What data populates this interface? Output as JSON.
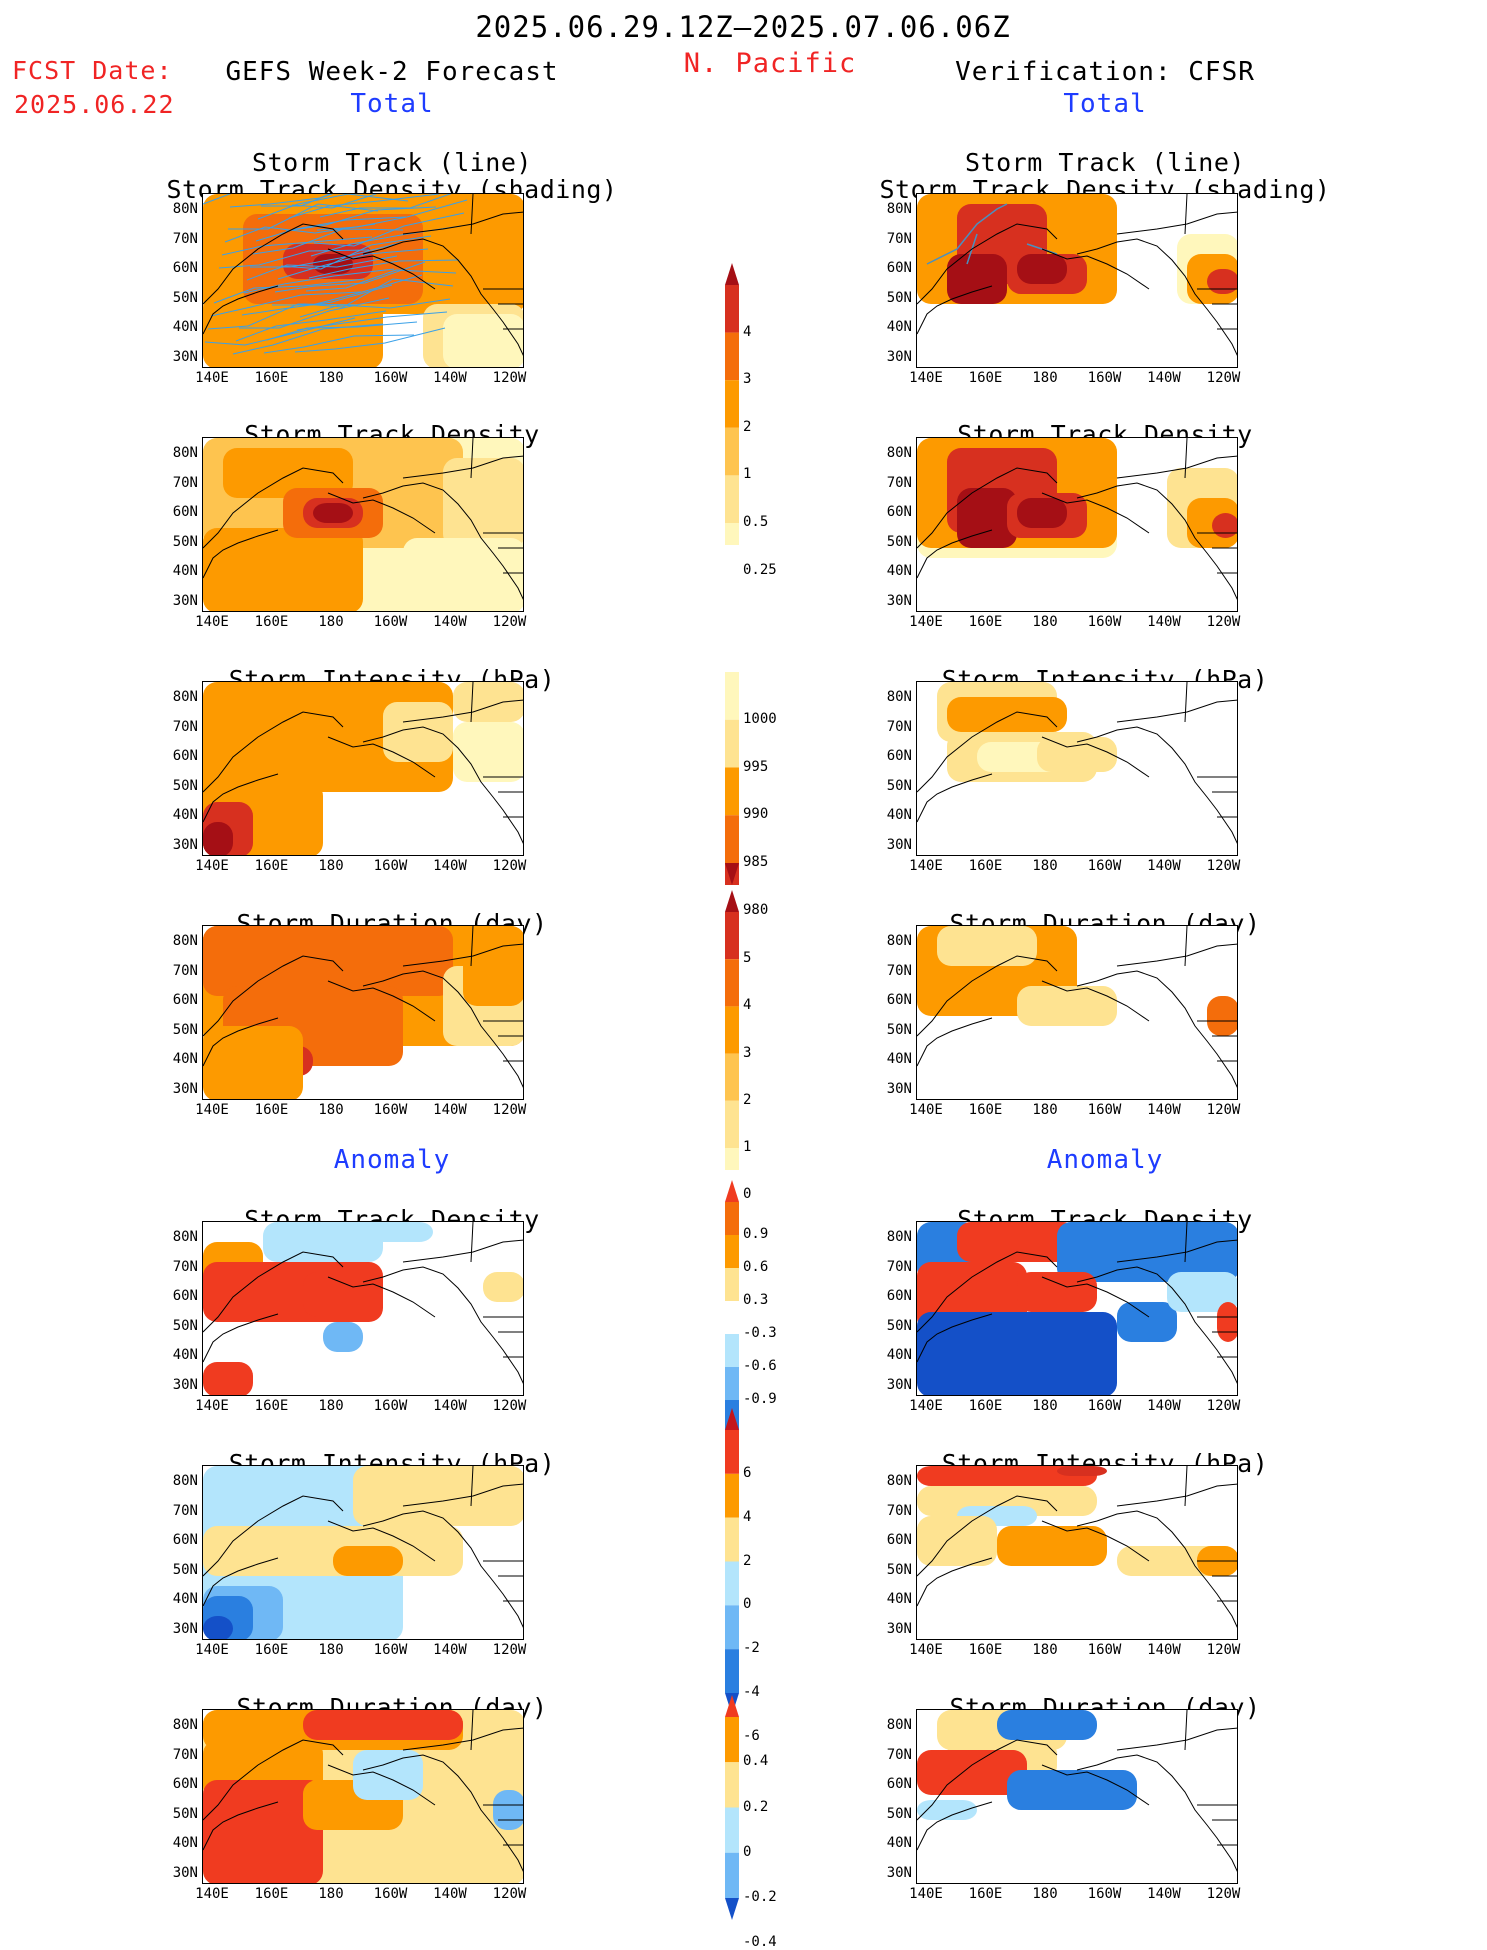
{
  "header": {
    "period": "2025.06.29.12Z–2025.07.06.06Z",
    "region": "N. Pacific",
    "fcst_label": "FCST Date:",
    "fcst_date": "2025.06.22",
    "left_title": "GEFS Week-2 Forecast",
    "right_title": "Verification: CFSR",
    "total_left": "Total",
    "total_right": "Total",
    "anomaly_left": "Anomaly",
    "anomaly_right": "Anomaly"
  },
  "panel_titles": {
    "p1_line1": "Storm Track (line)",
    "p1_line2": "Storm Track Density (shading)",
    "p2": "Storm Track Density",
    "p3": "Storm Intensity (hPa)",
    "p4": "Storm Duration (day)",
    "p5": "Storm Track Density",
    "p6": "Storm Intensity (hPa)",
    "p7": "Storm Duration (day)"
  },
  "axes": {
    "lat_labels": [
      "80N",
      "70N",
      "60N",
      "50N",
      "40N",
      "30N"
    ],
    "lon_labels": [
      "140E",
      "160E",
      "180",
      "160W",
      "140W",
      "120W"
    ]
  },
  "colorbars": {
    "density": {
      "labels": [
        "4",
        "3",
        "2",
        "1",
        "0.5",
        "0.25"
      ],
      "colors": [
        "#a50f15",
        "#d7301f",
        "#f46d0b",
        "#fd9a00",
        "#fec44f",
        "#fee391",
        "#fff7bc"
      ]
    },
    "intensity": {
      "labels": [
        "1000",
        "995",
        "990",
        "985",
        "980"
      ],
      "colors": [
        "#fff7bc",
        "#fee391",
        "#fd9a00",
        "#f46d0b",
        "#d7301f",
        "#a50f15"
      ]
    },
    "duration": {
      "labels": [
        "5",
        "4",
        "3",
        "2",
        "1",
        "0"
      ],
      "colors": [
        "#a50f15",
        "#d7301f",
        "#f46d0b",
        "#fd9a00",
        "#fec44f",
        "#fee391",
        "#fff7bc"
      ]
    },
    "anom_density": {
      "labels": [
        "0.9",
        "0.6",
        "0.3",
        "-0.3",
        "-0.6",
        "-0.9"
      ],
      "colors": [
        "#f03b20",
        "#f46d0b",
        "#fd9a00",
        "#fee391",
        "#ffffff",
        "#b3e5fc",
        "#6fb8f5",
        "#2a7fe0",
        "#1450c8"
      ]
    },
    "anom_intensity": {
      "labels": [
        "6",
        "4",
        "2",
        "0",
        "-2",
        "-4",
        "-6"
      ],
      "colors": [
        "#c4161c",
        "#f03b20",
        "#fd9a00",
        "#fee391",
        "#b3e5fc",
        "#6fb8f5",
        "#2a7fe0",
        "#1450c8"
      ]
    },
    "anom_duration": {
      "labels": [
        "0.4",
        "0.2",
        "0",
        "-0.2",
        "-0.4"
      ],
      "colors": [
        "#f03b20",
        "#fd9a00",
        "#fee391",
        "#b3e5fc",
        "#6fb8f5",
        "#1450c8"
      ]
    }
  },
  "palette": {
    "title_red": "#f02424",
    "title_blue": "#1e3cff",
    "track_line": "#3aa0e8"
  }
}
